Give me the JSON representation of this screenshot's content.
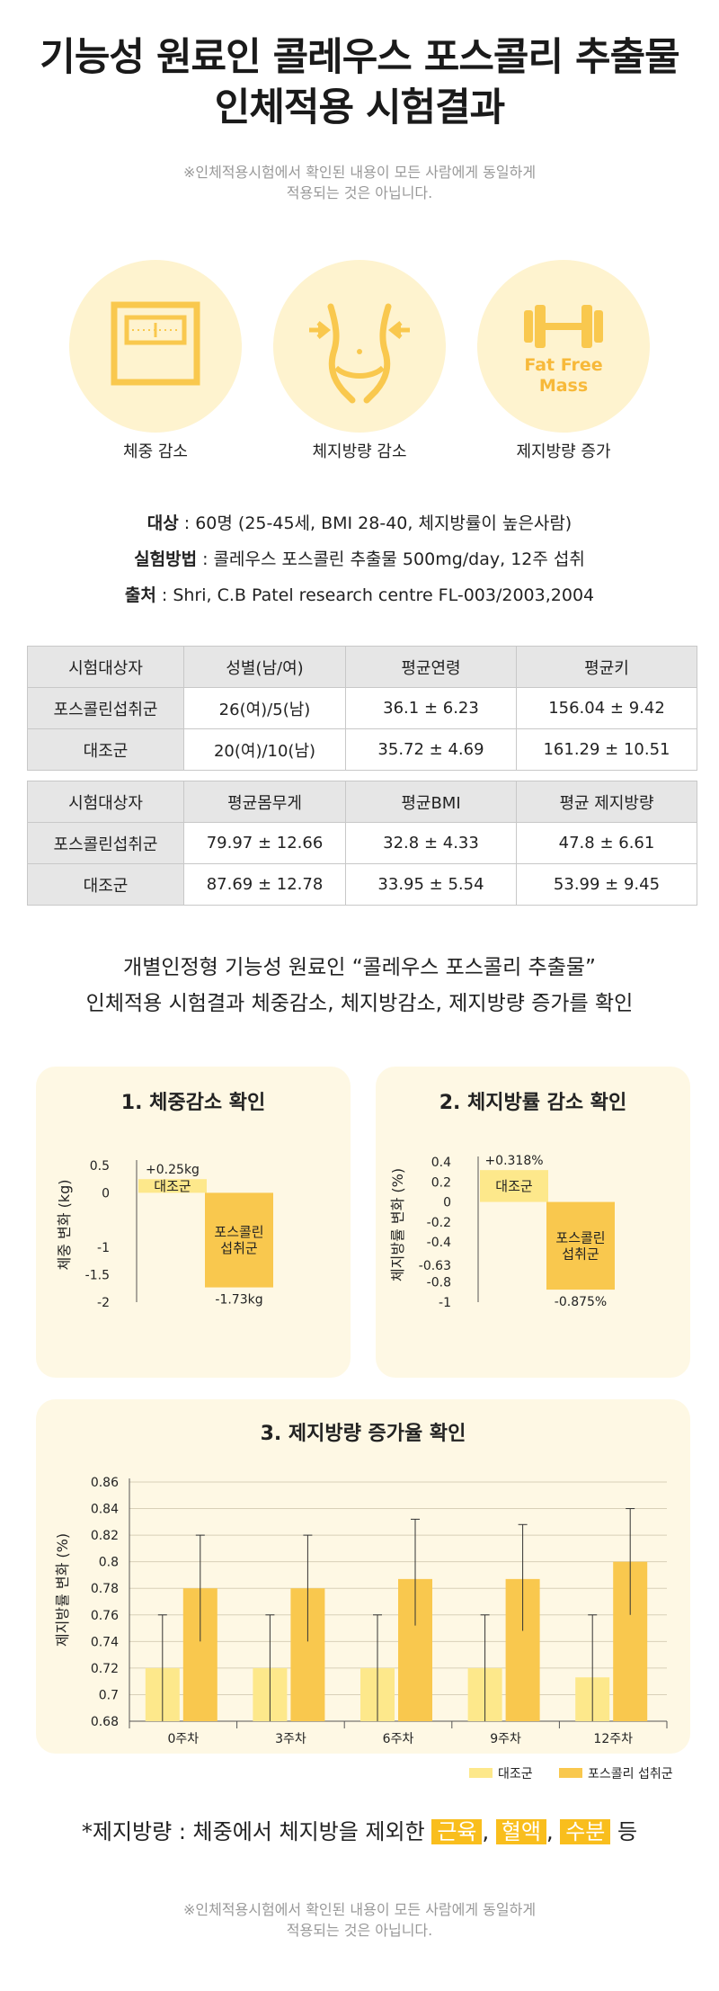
{
  "title": {
    "line1": "기능성 원료인 콜레우스 포스콜리 추출물",
    "line2": "인체적용 시험결과"
  },
  "disclaimer": {
    "line1": "※인체적용시험에서 확인된 내용이 모든 사람에게 동일하게",
    "line2": "적용되는 것은 아닙니다."
  },
  "icons": [
    {
      "label": "체중 감소",
      "icon": "scale-icon"
    },
    {
      "label": "체지방량 감소",
      "icon": "waist-icon"
    },
    {
      "label": "제지방량 증가",
      "icon": "dumbbell-icon",
      "text1": "Fat Free",
      "text2": "Mass"
    }
  ],
  "info": {
    "subject_key": "대상",
    "subject_val": " : 60명 (25-45세, BMI 28-40, 체지방률이 높은사람)",
    "method_key": "실험방법",
    "method_val": " : 콜레우스 포스콜린 추출물 500mg/day, 12주 섭취",
    "source_key": "출처",
    "source_val": " : Shri, C.B Patel research centre FL-003/2003,2004"
  },
  "table1": {
    "headers": [
      "시험대상자",
      "성별(남/여)",
      "평균연령",
      "평균키"
    ],
    "rows": [
      [
        "포스콜린섭취군",
        "26(여)/5(남)",
        "36.1 ± 6.23",
        "156.04 ± 9.42"
      ],
      [
        "대조군",
        "20(여)/10(남)",
        "35.72 ± 4.69",
        "161.29 ± 10.51"
      ]
    ]
  },
  "table2": {
    "headers": [
      "시험대상자",
      "평균몸무게",
      "평균BMI",
      "평균 제지방량"
    ],
    "rows": [
      [
        "포스콜린섭취군",
        "79.97 ± 12.66",
        "32.8 ± 4.33",
        "47.8 ± 6.61"
      ],
      [
        "대조군",
        "87.69 ± 12.78",
        "33.95 ± 5.54",
        "53.99 ± 9.45"
      ]
    ]
  },
  "summary": {
    "line1": "개별인정형 기능성 원료인 “콜레우스 포스콜리 추출물”",
    "line2": "인체적용 시험결과 체중감소, 체지방감소, 제지방량 증가를 확인"
  },
  "colors": {
    "control": "#fde88b",
    "forskolin": "#f9c84e",
    "panel": "#fef8e4",
    "highlight": "#f9be1d"
  },
  "chart_data": [
    {
      "type": "bar",
      "title": "1. 체중감소 확인",
      "ylabel": "체중 변화 (kg)",
      "ylim": [
        -2,
        0.5
      ],
      "yticks": [
        "0.5",
        "0",
        "-1",
        "-1.5",
        "-2"
      ],
      "categories": [
        "대조군",
        "포스콜린\n섭취군"
      ],
      "values": [
        0.25,
        -1.73
      ],
      "data_labels": [
        "+0.25kg",
        "-1.73kg"
      ]
    },
    {
      "type": "bar",
      "title": "2. 체지방률 감소 확인",
      "ylabel": "체지방률 변화 (%)",
      "ylim": [
        -1,
        0.4
      ],
      "yticks": [
        "0.4",
        "0.2",
        "0",
        "-0.2",
        "-0.4",
        "-0.63",
        "-0.8",
        "-1"
      ],
      "categories": [
        "대조군",
        "포스콜린\n섭취군"
      ],
      "values": [
        0.318,
        -0.875
      ],
      "data_labels": [
        "+0.318%",
        "-0.875%"
      ]
    },
    {
      "type": "bar",
      "title": "3. 제지방량 증가율 확인",
      "ylabel": "제지방률 변화 (%)",
      "ylim": [
        0.68,
        0.86
      ],
      "yticks": [
        "0.86",
        "0.84",
        "0.82",
        "0.8",
        "0.78",
        "0.76",
        "0.74",
        "0.72",
        "0.7",
        "0.68"
      ],
      "grid": true,
      "categories": [
        "0주차",
        "3주차",
        "6주차",
        "9주차",
        "12주차"
      ],
      "series": [
        {
          "name": "대조군",
          "values": [
            0.72,
            0.72,
            0.72,
            0.72,
            0.713
          ],
          "err_low": [
            0.68,
            0.68,
            0.68,
            0.68,
            0.68
          ],
          "err_high": [
            0.76,
            0.76,
            0.76,
            0.76,
            0.76
          ]
        },
        {
          "name": "포스콜리 섭취군",
          "values": [
            0.78,
            0.78,
            0.787,
            0.787,
            0.8
          ],
          "err_low": [
            0.74,
            0.74,
            0.752,
            0.748,
            0.76
          ],
          "err_high": [
            0.82,
            0.82,
            0.832,
            0.828,
            0.84
          ]
        }
      ],
      "legend": "bottom-right"
    }
  ],
  "note": {
    "prefix": "*제지방량 : 체중에서 체지방을 제외한 ",
    "h1": "근육",
    "sep1": ",",
    "h2": "혈액",
    "sep2": ",",
    "h3": "수분",
    "suffix": " 등"
  }
}
